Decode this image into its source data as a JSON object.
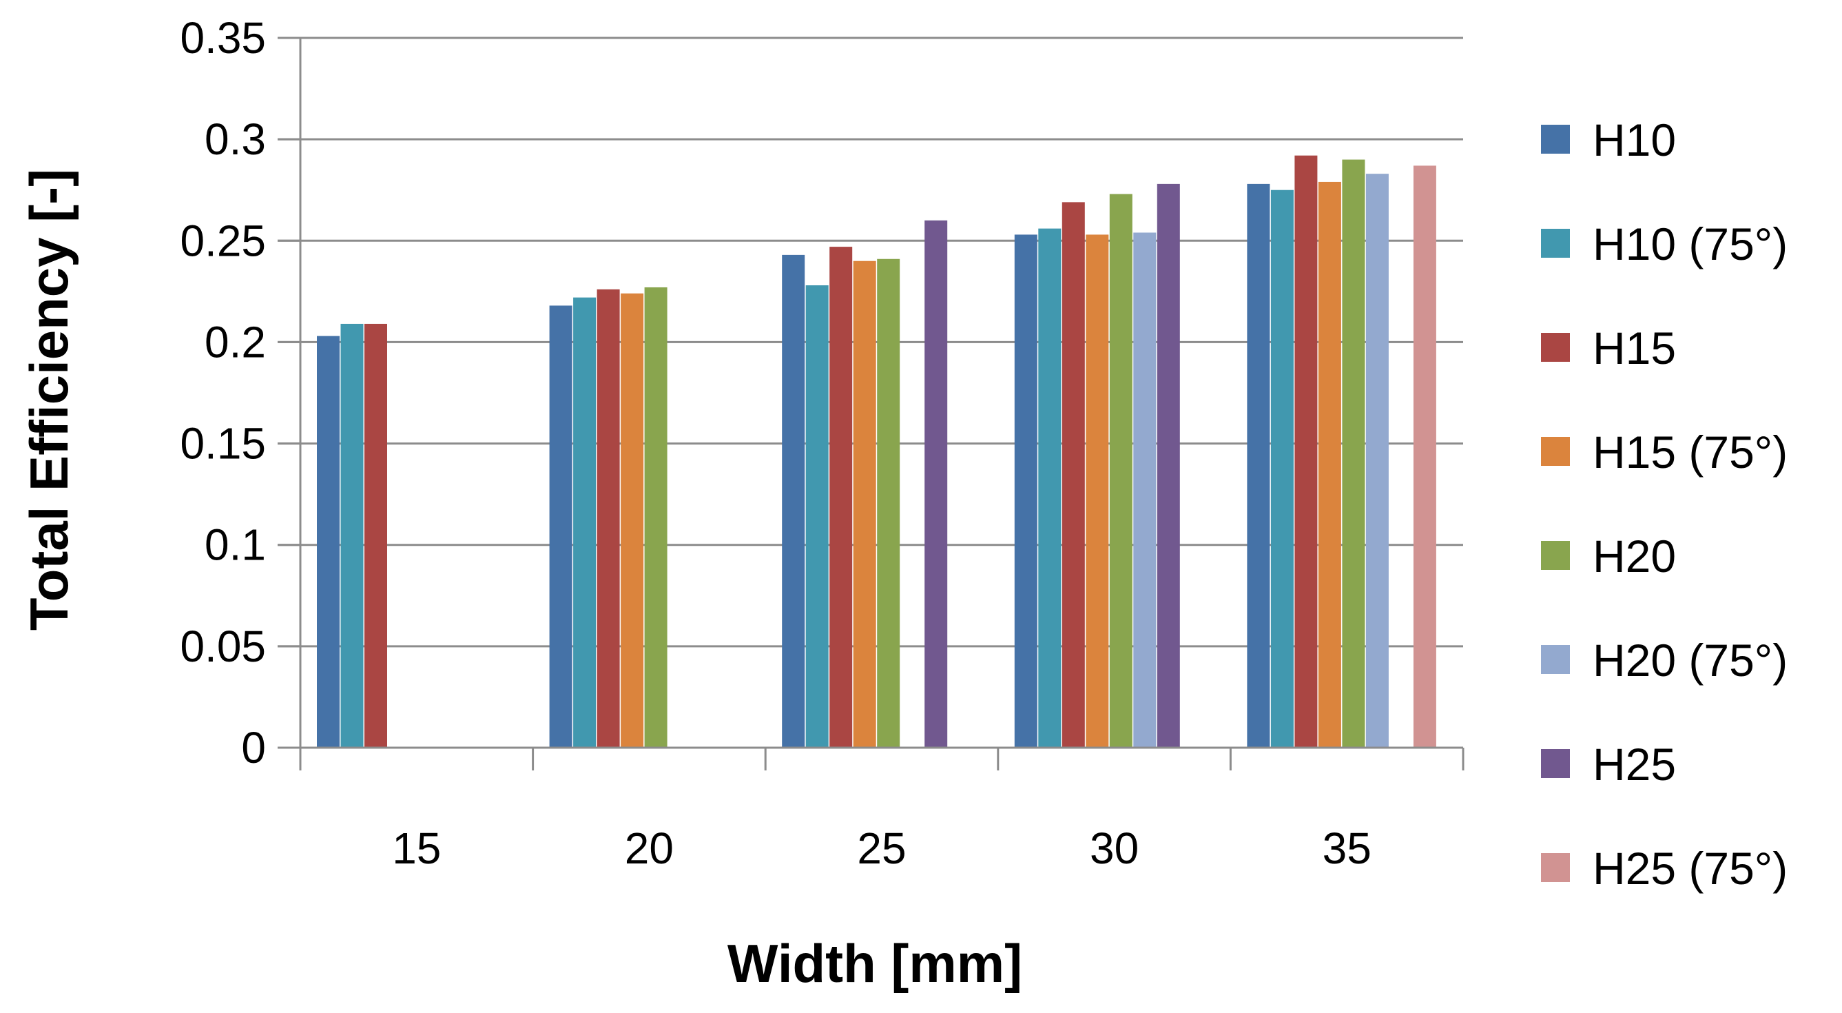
{
  "chart_data": {
    "type": "bar",
    "title": "",
    "xlabel": "Width [mm]",
    "ylabel": "Total Efficiency [-]",
    "categories": [
      "15",
      "20",
      "25",
      "30",
      "35"
    ],
    "ylim": [
      0,
      0.35
    ],
    "yticks": [
      "0",
      "0.05",
      "0.1",
      "0.15",
      "0.2",
      "0.25",
      "0.3",
      "0.35"
    ],
    "grid": true,
    "legend_position": "right",
    "series": [
      {
        "name": "H10",
        "color": "#4572A7",
        "values": [
          0.203,
          0.218,
          0.243,
          0.253,
          0.278
        ]
      },
      {
        "name": "H10 (75°)",
        "color": "#4198AF",
        "values": [
          0.209,
          0.222,
          0.228,
          0.256,
          0.275
        ]
      },
      {
        "name": "H15",
        "color": "#AA4643",
        "values": [
          0.209,
          0.226,
          0.247,
          0.269,
          0.292
        ]
      },
      {
        "name": "H15 (75°)",
        "color": "#DB843D",
        "values": [
          null,
          0.224,
          0.24,
          0.253,
          0.279
        ]
      },
      {
        "name": "H20",
        "color": "#89A54E",
        "values": [
          null,
          0.227,
          0.241,
          0.273,
          0.29
        ]
      },
      {
        "name": "H20 (75°)",
        "color": "#93A9CF",
        "values": [
          null,
          null,
          null,
          0.254,
          0.283
        ]
      },
      {
        "name": "H25",
        "color": "#71588F",
        "values": [
          null,
          null,
          0.26,
          0.278,
          null
        ]
      },
      {
        "name": "H25 (75°)",
        "color": "#D19392",
        "values": [
          null,
          null,
          null,
          null,
          0.287
        ]
      }
    ]
  }
}
